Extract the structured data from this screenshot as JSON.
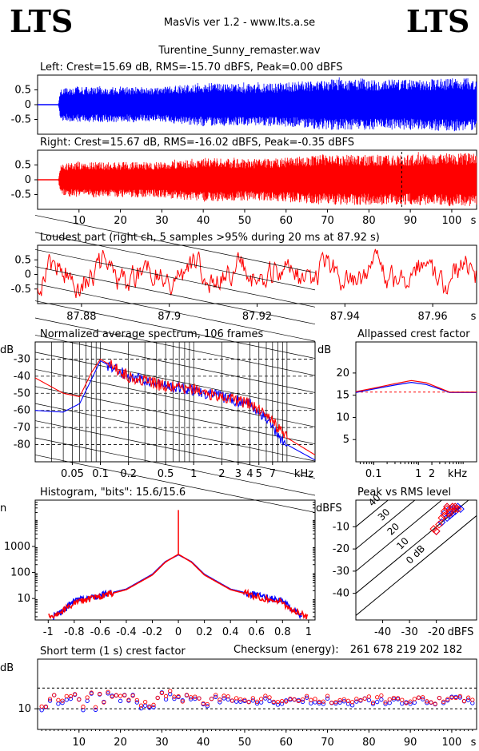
{
  "header": {
    "logo_left": "LTS",
    "logo_right": "LTS",
    "app_title": "MasVis ver 1.2 - www.lts.a.se",
    "file_name": "Turentine_Sunny_remaster.wav"
  },
  "colors": {
    "left": "#0000ff",
    "right": "#ff0000"
  },
  "chart_data": [
    {
      "id": "left_waveform",
      "type": "line",
      "title": "Left: Crest=15.69 dB, RMS=-15.70 dBFS, Peak=0.00 dBFS",
      "x_range": [
        0,
        106
      ],
      "ylim": [
        -1,
        1
      ],
      "yticks": [
        {
          "v": 0.5,
          "label": "0.5"
        },
        {
          "v": 0,
          "label": "0"
        },
        {
          "v": -0.5,
          "label": "-0.5"
        }
      ],
      "series": [
        {
          "x": [
            0,
            5,
            5.5,
            10,
            20,
            30,
            40,
            50,
            60,
            70,
            80,
            90,
            100,
            106
          ],
          "envelope": [
            0,
            0,
            0.55,
            0.6,
            0.6,
            0.6,
            0.75,
            0.7,
            0.75,
            0.85,
            0.85,
            0.85,
            0.9,
            0.9
          ]
        }
      ]
    },
    {
      "id": "right_waveform",
      "type": "line",
      "title": "Right: Crest=15.67 dB, RMS=-16.02 dBFS, Peak=-0.35 dBFS",
      "x_range": [
        0,
        106
      ],
      "ylim": [
        -1,
        1
      ],
      "yticks": [
        {
          "v": 0.5,
          "label": "0.5"
        },
        {
          "v": 0,
          "label": "0"
        },
        {
          "v": -0.5,
          "label": "-0.5"
        }
      ],
      "xticks": [
        {
          "v": 10,
          "label": "10"
        },
        {
          "v": 20,
          "label": "20"
        },
        {
          "v": 30,
          "label": "30"
        },
        {
          "v": 40,
          "label": "40"
        },
        {
          "v": 50,
          "label": "50"
        },
        {
          "v": 60,
          "label": "60"
        },
        {
          "v": 70,
          "label": "70"
        },
        {
          "v": 80,
          "label": "80"
        },
        {
          "v": 90,
          "label": "90"
        },
        {
          "v": 100,
          "label": "100"
        }
      ],
      "x_unit": "s",
      "marker_x": 87.92,
      "series": [
        {
          "x": [
            0,
            5,
            5.5,
            10,
            20,
            30,
            40,
            50,
            60,
            70,
            80,
            90,
            100,
            106
          ],
          "envelope": [
            0,
            0,
            0.55,
            0.6,
            0.6,
            0.6,
            0.75,
            0.7,
            0.75,
            0.85,
            0.85,
            0.85,
            0.9,
            0.9
          ]
        }
      ]
    },
    {
      "id": "loudest_part",
      "type": "line",
      "title": "Loudest part (right ch, 5 samples >95% during 20 ms at 87.92 s)",
      "x_range": [
        87.87,
        87.97
      ],
      "ylim": [
        -1,
        1
      ],
      "yticks": [
        {
          "v": 0.5,
          "label": "0.5"
        },
        {
          "v": 0,
          "label": "0"
        },
        {
          "v": -0.5,
          "label": "-0.5"
        }
      ],
      "xticks": [
        {
          "v": 87.88,
          "label": "87.88"
        },
        {
          "v": 87.9,
          "label": "87.9"
        },
        {
          "v": 87.92,
          "label": "87.92"
        },
        {
          "v": 87.94,
          "label": "87.94"
        },
        {
          "v": 87.96,
          "label": "87.96"
        }
      ],
      "x_unit": "s"
    },
    {
      "id": "spectrum",
      "type": "line",
      "title": "Normalized average spectrum, 106 frames",
      "y_unit": "dB",
      "x_unit": "kHz",
      "x_scale": "log",
      "x_range": [
        0.02,
        20
      ],
      "ylim": [
        -90,
        -20
      ],
      "yticks": [
        {
          "v": -30,
          "label": "-30"
        },
        {
          "v": -40,
          "label": "-40"
        },
        {
          "v": -50,
          "label": "-50"
        },
        {
          "v": -60,
          "label": "-60"
        },
        {
          "v": -70,
          "label": "-70"
        },
        {
          "v": -80,
          "label": "-80"
        }
      ],
      "xticks": [
        {
          "v": 0.05,
          "label": "0.05"
        },
        {
          "v": 0.1,
          "label": "0.1"
        },
        {
          "v": 0.2,
          "label": "0.2"
        },
        {
          "v": 0.5,
          "label": "0.5"
        },
        {
          "v": 1,
          "label": "1"
        },
        {
          "v": 2,
          "label": "2"
        },
        {
          "v": 3,
          "label": "3"
        },
        {
          "v": 4,
          "label": "4"
        },
        {
          "v": 5,
          "label": "5"
        },
        {
          "v": 7,
          "label": "7"
        }
      ],
      "series": [
        {
          "x": [
            0.02,
            0.04,
            0.06,
            0.08,
            0.1,
            0.15,
            0.2,
            0.5,
            1,
            2,
            4,
            6,
            8,
            10,
            20
          ],
          "y": [
            -41,
            -50,
            -52,
            -38,
            -30,
            -36,
            -40,
            -46,
            -48,
            -52,
            -56,
            -62,
            -70,
            -76,
            -86
          ]
        },
        {
          "x": [
            0.02,
            0.04,
            0.06,
            0.08,
            0.1,
            0.15,
            0.2,
            0.5,
            1,
            2,
            4,
            6,
            8,
            10,
            20
          ],
          "y": [
            -60,
            -61,
            -56,
            -42,
            -31,
            -36,
            -40,
            -46,
            -48,
            -52,
            -56,
            -64,
            -74,
            -80,
            -89
          ]
        }
      ]
    },
    {
      "id": "allpass_crest",
      "type": "line",
      "title": "Allpassed crest factor",
      "y_unit": "dB",
      "x_unit": "kHz",
      "x_scale": "log",
      "x_range": [
        0.04,
        20
      ],
      "ylim": [
        0,
        27
      ],
      "yticks": [
        {
          "v": 20,
          "label": "20"
        },
        {
          "v": 15,
          "label": "15"
        },
        {
          "v": 10,
          "label": "10"
        },
        {
          "v": 5,
          "label": "5"
        }
      ],
      "xticks": [
        {
          "v": 0.1,
          "label": "0.1"
        },
        {
          "v": 1,
          "label": "1"
        },
        {
          "v": 2,
          "label": "2"
        }
      ],
      "reference": 15.7,
      "series": [
        {
          "x": [
            0.04,
            0.1,
            0.3,
            0.7,
            1.5,
            3,
            5,
            20
          ],
          "y": [
            15.8,
            16.6,
            17.6,
            18.3,
            17.8,
            16.6,
            15.7,
            15.7
          ]
        },
        {
          "x": [
            0.04,
            0.1,
            0.3,
            0.7,
            1.5,
            3,
            5,
            20
          ],
          "y": [
            15.6,
            16.4,
            17.3,
            17.9,
            17.4,
            16.4,
            15.6,
            15.6
          ]
        }
      ]
    },
    {
      "id": "histogram",
      "type": "line",
      "title": "Histogram, \"bits\": 15.6/15.6",
      "y_unit": "n",
      "y_scale": "log",
      "x_range": [
        -1.1,
        1.05
      ],
      "ylim": [
        1.5,
        60000
      ],
      "yticks": [
        {
          "v": 1000,
          "label": "1000"
        },
        {
          "v": 100,
          "label": "100"
        },
        {
          "v": 10,
          "label": "10"
        }
      ],
      "xticks": [
        {
          "v": -1,
          "label": "-1"
        },
        {
          "v": -0.8,
          "label": "-0.8"
        },
        {
          "v": -0.6,
          "label": "-0.6"
        },
        {
          "v": -0.4,
          "label": "-0.4"
        },
        {
          "v": -0.2,
          "label": "-0.2"
        },
        {
          "v": 0,
          "label": "0"
        },
        {
          "v": 0.2,
          "label": "0.2"
        },
        {
          "v": 0.4,
          "label": "0.4"
        },
        {
          "v": 0.6,
          "label": "0.6"
        },
        {
          "v": 0.8,
          "label": "0.8"
        },
        {
          "v": 1,
          "label": "1"
        }
      ],
      "series": [
        {
          "x": [
            -1,
            -0.9,
            -0.8,
            -0.6,
            -0.4,
            -0.2,
            -0.1,
            0,
            0.1,
            0.2,
            0.4,
            0.6,
            0.8,
            0.9,
            1
          ],
          "y": [
            2,
            3,
            7,
            12,
            22,
            80,
            250,
            500,
            250,
            80,
            22,
            12,
            7,
            3,
            2
          ]
        },
        {
          "x": [
            -0.96,
            -0.9,
            -0.8,
            -0.6,
            -0.4,
            -0.2,
            -0.1,
            0,
            0.1,
            0.2,
            0.4,
            0.6,
            0.8,
            0.9,
            0.95
          ],
          "y": [
            2,
            3,
            8,
            13,
            23,
            85,
            260,
            480,
            260,
            85,
            23,
            13,
            8,
            3,
            2
          ]
        }
      ],
      "spike": {
        "x": 0,
        "y": 25000
      }
    },
    {
      "id": "peak_vs_rms",
      "type": "scatter",
      "title": "Peak vs RMS level",
      "y_unit": "dBFS",
      "x_unit": "dBFS",
      "x_range": [
        -50,
        -5
      ],
      "ylim": [
        -52,
        2
      ],
      "yticks": [
        {
          "v": -10,
          "label": "-10"
        },
        {
          "v": -20,
          "label": "-20"
        },
        {
          "v": -30,
          "label": "-30"
        },
        {
          "v": -40,
          "label": "-40"
        }
      ],
      "xticks": [
        {
          "v": -40,
          "label": "-40"
        },
        {
          "v": -30,
          "label": "-30"
        },
        {
          "v": -20,
          "label": "-20"
        }
      ],
      "diagonals": [
        {
          "offset": 40,
          "label": "40"
        },
        {
          "offset": 30,
          "label": "30"
        },
        {
          "offset": 20,
          "label": "20"
        },
        {
          "offset": 10,
          "label": "10"
        },
        {
          "offset": 0,
          "label": "0 dB"
        }
      ],
      "series": [
        {
          "x": [
            -16,
            -15,
            -14,
            -13,
            -17,
            -12,
            -15,
            -14,
            -16,
            -13,
            -18,
            -20,
            -11,
            -15,
            -14
          ],
          "y": [
            -1,
            -2,
            -1,
            -3,
            -4,
            -1,
            -5,
            -2,
            -6,
            -1,
            -8,
            -12,
            -2,
            -3,
            -4
          ]
        },
        {
          "x": [
            -16,
            -14,
            -13,
            -17,
            -15,
            -12,
            -18,
            -19,
            -21,
            -14,
            -16,
            -13,
            -15,
            -17,
            -20
          ],
          "y": [
            -1,
            -1,
            -2,
            -3,
            -4,
            -2,
            -6,
            -9,
            -11,
            -1,
            -2,
            -1,
            -3,
            -5,
            -12
          ]
        }
      ]
    },
    {
      "id": "short_term_crest",
      "type": "scatter",
      "title": "Short term (1 s) crest factor",
      "checksum_label": "Checksum (energy):",
      "checksum_value": "261 678 219 202 182",
      "y_unit": "dB",
      "x_unit": "s",
      "x_range": [
        0,
        106
      ],
      "ylim": [
        5,
        22
      ],
      "yticks": [
        {
          "v": 10,
          "label": "10"
        }
      ],
      "xticks": [
        {
          "v": 10,
          "label": "10"
        },
        {
          "v": 20,
          "label": "20"
        },
        {
          "v": 30,
          "label": "30"
        },
        {
          "v": 40,
          "label": "40"
        },
        {
          "v": 50,
          "label": "50"
        },
        {
          "v": 60,
          "label": "60"
        },
        {
          "v": 70,
          "label": "70"
        },
        {
          "v": 80,
          "label": "80"
        },
        {
          "v": 90,
          "label": "90"
        },
        {
          "v": 100,
          "label": "100"
        }
      ],
      "ref_lines": [
        15,
        10
      ],
      "series_mean": 11.8
    }
  ]
}
